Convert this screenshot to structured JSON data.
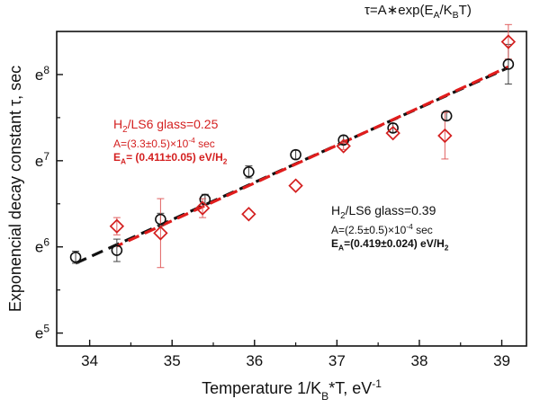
{
  "formula": {
    "pre": "τ=A∗exp(E",
    "sub1": "A",
    "mid": "/K",
    "sub2": "B",
    "post": "T)"
  },
  "annotations": {
    "red": {
      "l1_pre": "H",
      "l1_sub": "2",
      "l1_post": "/LS6 glass=0.25",
      "l2_pre": "A=(3.3±0.5)×10",
      "l2_sup": "-4",
      "l2_post": " sec",
      "l3_pre": "E",
      "l3_sub": "A",
      "l3_mid": "= (0.411±0.05) eV/H",
      "l3_sub2": "2"
    },
    "black": {
      "l1_pre": "H",
      "l1_sub": "2",
      "l1_post": "/LS6 glass=0.39",
      "l2_pre": "A=(2.5±0.5)×10",
      "l2_sup": "-4",
      "l2_post": " sec",
      "l3_pre": "E",
      "l3_sub": "A",
      "l3_mid": "=(0.419±0.024) eV/H",
      "l3_sub2": "2"
    }
  },
  "colors": {
    "red": "#d42020",
    "black": "#111111",
    "red_dash": "#e01c1c"
  },
  "chart_data": {
    "type": "scatter",
    "xlabel": "Temperature 1/K_B*T, eV^-1",
    "ylabel": "Exponencial decay constant τ, sec",
    "xlim": [
      33.6,
      39.3
    ],
    "ylim": [
      4.85,
      8.5
    ],
    "y_scale": "ln",
    "x_ticks": [
      34,
      35,
      36,
      37,
      38,
      39
    ],
    "y_ticks": [
      5,
      6,
      7,
      8
    ],
    "y_tick_base": "e",
    "series": [
      {
        "marker": "circle",
        "color": "#111111",
        "x": [
          33.83,
          34.33,
          34.86,
          35.4,
          35.93,
          36.5,
          37.08,
          37.68,
          38.33,
          39.08
        ],
        "y": [
          5.88,
          5.96,
          6.32,
          6.55,
          6.87,
          7.07,
          7.24,
          7.38,
          7.52,
          8.12
        ],
        "err": [
          0.07,
          0.13,
          0.07,
          0.06,
          0.07,
          0.05,
          0.05,
          0.05,
          0.05,
          0.23
        ]
      },
      {
        "marker": "diamond",
        "color": "#d42020",
        "x": [
          34.33,
          34.86,
          35.37,
          35.93,
          36.5,
          37.08,
          37.68,
          38.31,
          39.08
        ],
        "y": [
          6.24,
          6.16,
          6.45,
          6.38,
          6.71,
          7.17,
          7.32,
          7.29,
          8.38
        ],
        "err": [
          0.1,
          0.4,
          0.11,
          0.0,
          0.0,
          0.04,
          0.0,
          0.27,
          0.2
        ]
      }
    ],
    "fits": [
      {
        "color": "#111111",
        "style": "dash",
        "x": [
          33.83,
          39.08
        ],
        "y": [
          5.81,
          8.08
        ]
      },
      {
        "color": "#e01c1c",
        "style": "dash",
        "x": [
          34.33,
          39.08
        ],
        "y": [
          6.01,
          8.09
        ]
      }
    ]
  }
}
